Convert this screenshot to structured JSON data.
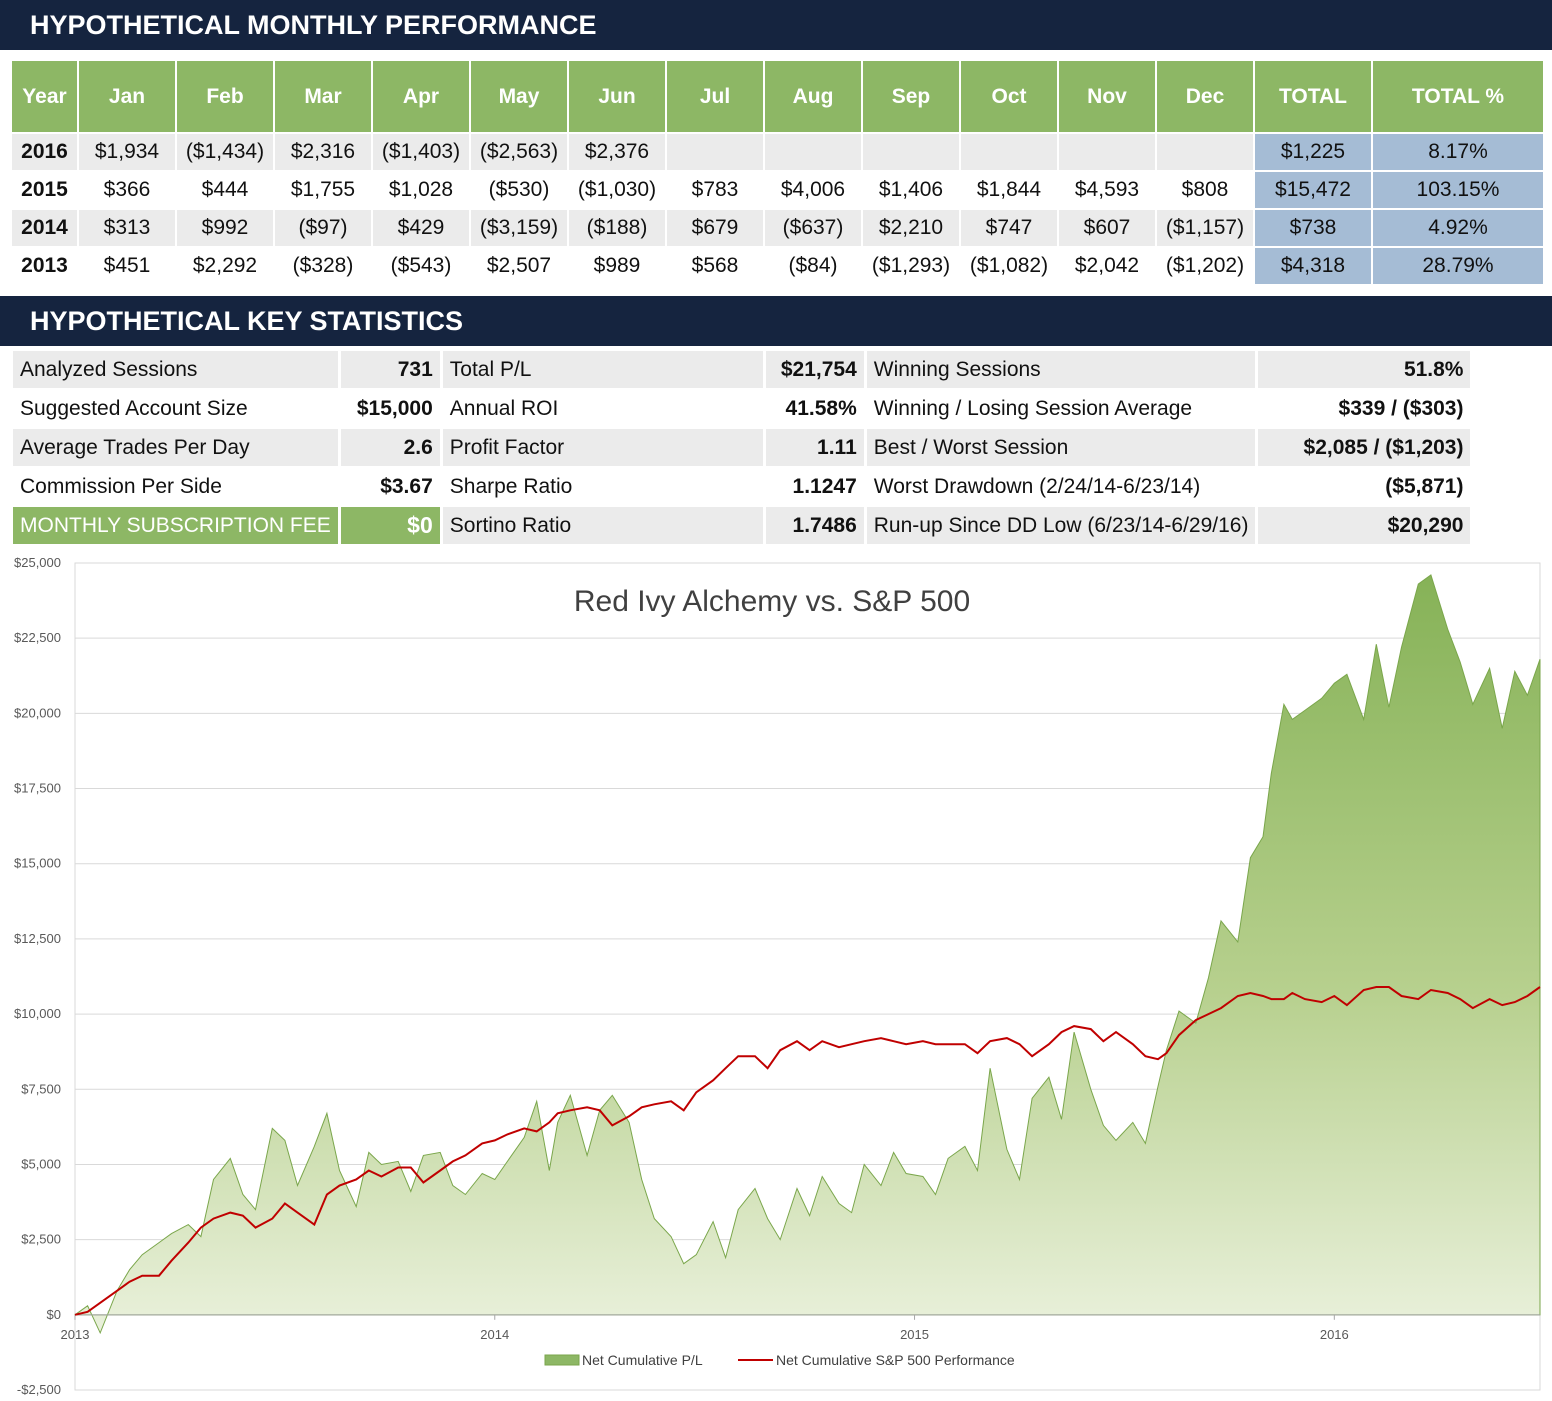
{
  "sections": {
    "monthly_title": "HYPOTHETICAL MONTHLY PERFORMANCE",
    "stats_title": "HYPOTHETICAL KEY STATISTICS"
  },
  "monthly": {
    "headers": [
      "Year",
      "Jan",
      "Feb",
      "Mar",
      "Apr",
      "May",
      "Jun",
      "Jul",
      "Aug",
      "Sep",
      "Oct",
      "Nov",
      "Dec",
      "TOTAL",
      "TOTAL %"
    ],
    "rows": [
      [
        "2016",
        "$1,934",
        "($1,434)",
        "$2,316",
        "($1,403)",
        "($2,563)",
        "$2,376",
        "",
        "",
        "",
        "",
        "",
        "",
        "$1,225",
        "8.17%"
      ],
      [
        "2015",
        "$366",
        "$444",
        "$1,755",
        "$1,028",
        "($530)",
        "($1,030)",
        "$783",
        "$4,006",
        "$1,406",
        "$1,844",
        "$4,593",
        "$808",
        "$15,472",
        "103.15%"
      ],
      [
        "2014",
        "$313",
        "$992",
        "($97)",
        "$429",
        "($3,159)",
        "($188)",
        "$679",
        "($637)",
        "$2,210",
        "$747",
        "$607",
        "($1,157)",
        "$738",
        "4.92%"
      ],
      [
        "2013",
        "$451",
        "$2,292",
        "($328)",
        "($543)",
        "$2,507",
        "$989",
        "$568",
        "($84)",
        "($1,293)",
        "($1,082)",
        "$2,042",
        "($1,202)",
        "$4,318",
        "28.79%"
      ]
    ]
  },
  "stats": {
    "rows": [
      [
        "Analyzed Sessions",
        "731",
        "Total P/L",
        "$21,754",
        "Winning Sessions",
        "51.8%"
      ],
      [
        "Suggested Account Size",
        "$15,000",
        "Annual ROI",
        "41.58%",
        "Winning / Losing Session Average",
        "$339 / ($303)"
      ],
      [
        "Average Trades Per Day",
        "2.6",
        "Profit Factor",
        "1.11",
        "Best / Worst Session",
        "$2,085 / ($1,203)"
      ],
      [
        "Commission Per Side",
        "$3.67",
        "Sharpe Ratio",
        "1.1247",
        "Worst Drawdown (2/24/14-6/23/14)",
        "($5,871)"
      ],
      [
        "MONTHLY SUBSCRIPTION FEE",
        "$0",
        "Sortino Ratio",
        "1.7486",
        "Run-up Since DD Low (6/23/14-6/29/16)",
        "$20,290"
      ]
    ]
  },
  "colors": {
    "header_navy": "#15243f",
    "green": "#8db765",
    "blue_total": "#a5bcd5",
    "sp_line": "#c00000"
  },
  "chart_data": {
    "type": "area",
    "title": "Red Ivy Alchemy vs. S&P 500",
    "ylim": [
      -2500,
      25000
    ],
    "xlim": [
      2013.0,
      2016.49
    ],
    "y_ticks": [
      -2500,
      0,
      2500,
      5000,
      7500,
      10000,
      12500,
      15000,
      17500,
      20000,
      22500,
      25000
    ],
    "y_tick_labels": [
      "-$2,500",
      "$0",
      "$2,500",
      "$5,000",
      "$7,500",
      "$10,000",
      "$12,500",
      "$15,000",
      "$17,500",
      "$20,000",
      "$22,500",
      "$25,000"
    ],
    "x_ticks": [
      2013,
      2014,
      2015,
      2016
    ],
    "x_tick_labels": [
      "2013",
      "2014",
      "2015",
      "2016"
    ],
    "grid": true,
    "legend_position": "bottom",
    "series": [
      {
        "name": "Net Cumulative P/L",
        "style": "area",
        "color": "#8db765",
        "x": [
          2013.0,
          2013.03,
          2013.06,
          2013.1,
          2013.13,
          2013.16,
          2013.2,
          2013.23,
          2013.27,
          2013.3,
          2013.33,
          2013.37,
          2013.4,
          2013.43,
          2013.47,
          2013.5,
          2013.53,
          2013.57,
          2013.6,
          2013.63,
          2013.67,
          2013.7,
          2013.73,
          2013.77,
          2013.8,
          2013.83,
          2013.87,
          2013.9,
          2013.93,
          2013.97,
          2014.0,
          2014.03,
          2014.07,
          2014.1,
          2014.13,
          2014.15,
          2014.18,
          2014.22,
          2014.25,
          2014.28,
          2014.32,
          2014.35,
          2014.38,
          2014.42,
          2014.45,
          2014.48,
          2014.52,
          2014.55,
          2014.58,
          2014.62,
          2014.65,
          2014.68,
          2014.72,
          2014.75,
          2014.78,
          2014.82,
          2014.85,
          2014.88,
          2014.92,
          2014.95,
          2014.98,
          2015.02,
          2015.05,
          2015.08,
          2015.12,
          2015.15,
          2015.18,
          2015.22,
          2015.25,
          2015.28,
          2015.32,
          2015.35,
          2015.38,
          2015.42,
          2015.45,
          2015.48,
          2015.52,
          2015.55,
          2015.58,
          2015.6,
          2015.63,
          2015.67,
          2015.7,
          2015.73,
          2015.77,
          2015.8,
          2015.83,
          2015.85,
          2015.88,
          2015.9,
          2015.93,
          2015.97,
          2016.0,
          2016.03,
          2016.07,
          2016.1,
          2016.13,
          2016.16,
          2016.2,
          2016.23,
          2016.27,
          2016.3,
          2016.33,
          2016.37,
          2016.4,
          2016.43,
          2016.46,
          2016.49
        ],
        "y": [
          0,
          300,
          -600,
          800,
          1500,
          2000,
          2400,
          2700,
          3000,
          2600,
          4500,
          5200,
          4000,
          3500,
          6200,
          5800,
          4300,
          5600,
          6700,
          4800,
          3600,
          5400,
          5000,
          5100,
          4100,
          5300,
          5400,
          4300,
          4000,
          4700,
          4500,
          5100,
          5900,
          7100,
          4800,
          6400,
          7300,
          5300,
          6800,
          7300,
          6400,
          4500,
          3200,
          2600,
          1700,
          2000,
          3100,
          1900,
          3500,
          4200,
          3200,
          2500,
          4200,
          3300,
          4600,
          3700,
          3400,
          5000,
          4300,
          5400,
          4700,
          4600,
          4000,
          5200,
          5600,
          4800,
          8200,
          5500,
          4500,
          7200,
          7900,
          6500,
          9400,
          7500,
          6300,
          5800,
          6400,
          5700,
          7600,
          8800,
          10100,
          9700,
          11200,
          13100,
          12400,
          15200,
          15900,
          18000,
          20300,
          19800,
          20100,
          20500,
          21000,
          21300,
          19800,
          22300,
          20200,
          22200,
          24300,
          24600,
          22800,
          21700,
          20300,
          21500,
          19500,
          21400,
          20600,
          21800
        ]
      },
      {
        "name": "Net Cumulative S&P 500 Performance",
        "style": "line",
        "color": "#c00000",
        "x": [
          2013.0,
          2013.03,
          2013.06,
          2013.1,
          2013.13,
          2013.16,
          2013.2,
          2013.23,
          2013.27,
          2013.3,
          2013.33,
          2013.37,
          2013.4,
          2013.43,
          2013.47,
          2013.5,
          2013.53,
          2013.57,
          2013.6,
          2013.63,
          2013.67,
          2013.7,
          2013.73,
          2013.77,
          2013.8,
          2013.83,
          2013.87,
          2013.9,
          2013.93,
          2013.97,
          2014.0,
          2014.03,
          2014.07,
          2014.1,
          2014.13,
          2014.15,
          2014.18,
          2014.22,
          2014.25,
          2014.28,
          2014.32,
          2014.35,
          2014.38,
          2014.42,
          2014.45,
          2014.48,
          2014.52,
          2014.55,
          2014.58,
          2014.62,
          2014.65,
          2014.68,
          2014.72,
          2014.75,
          2014.78,
          2014.82,
          2014.85,
          2014.88,
          2014.92,
          2014.95,
          2014.98,
          2015.02,
          2015.05,
          2015.08,
          2015.12,
          2015.15,
          2015.18,
          2015.22,
          2015.25,
          2015.28,
          2015.32,
          2015.35,
          2015.38,
          2015.42,
          2015.45,
          2015.48,
          2015.52,
          2015.55,
          2015.58,
          2015.6,
          2015.63,
          2015.67,
          2015.7,
          2015.73,
          2015.77,
          2015.8,
          2015.83,
          2015.85,
          2015.88,
          2015.9,
          2015.93,
          2015.97,
          2016.0,
          2016.03,
          2016.07,
          2016.1,
          2016.13,
          2016.16,
          2016.2,
          2016.23,
          2016.27,
          2016.3,
          2016.33,
          2016.37,
          2016.4,
          2016.43,
          2016.46,
          2016.49
        ],
        "y": [
          0,
          100,
          400,
          800,
          1100,
          1300,
          1300,
          1800,
          2400,
          2900,
          3200,
          3400,
          3300,
          2900,
          3200,
          3700,
          3400,
          3000,
          4000,
          4300,
          4500,
          4800,
          4600,
          4900,
          4900,
          4400,
          4800,
          5100,
          5300,
          5700,
          5800,
          6000,
          6200,
          6100,
          6400,
          6700,
          6800,
          6900,
          6800,
          6300,
          6600,
          6900,
          7000,
          7100,
          6800,
          7400,
          7800,
          8200,
          8600,
          8600,
          8200,
          8800,
          9100,
          8800,
          9100,
          8900,
          9000,
          9100,
          9200,
          9100,
          9000,
          9100,
          9000,
          9000,
          9000,
          8700,
          9100,
          9200,
          9000,
          8600,
          9000,
          9400,
          9600,
          9500,
          9100,
          9400,
          9000,
          8600,
          8500,
          8700,
          9300,
          9800,
          10000,
          10200,
          10600,
          10700,
          10600,
          10500,
          10500,
          10700,
          10500,
          10400,
          10600,
          10300,
          10800,
          10900,
          10900,
          10600,
          10500,
          10800,
          10700,
          10500,
          10200,
          10500,
          10300,
          10400,
          10600,
          10900
        ]
      }
    ]
  }
}
